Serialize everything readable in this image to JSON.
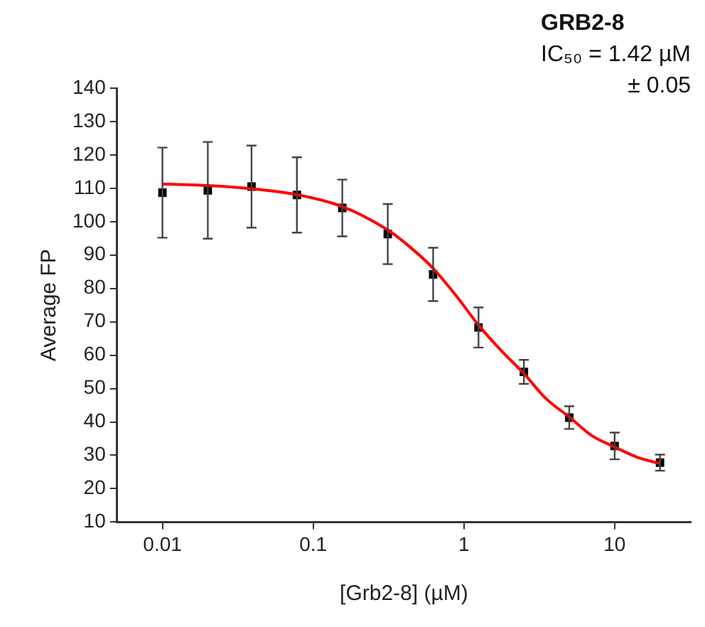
{
  "chart_data": {
    "type": "scatter",
    "title": "GRB2-8",
    "annotations": [
      "IC₅₀ = 1.42 µM",
      "± 0.05"
    ],
    "xlabel": "[Grb2-8] (µM)",
    "ylabel": "Average FP",
    "log": "x",
    "grid": false,
    "legend": false,
    "xlim": [
      0.005,
      32
    ],
    "xticks": [
      0.01,
      0.1,
      1,
      10
    ],
    "ylim": [
      10,
      140
    ],
    "yticks": [
      10,
      20,
      30,
      40,
      50,
      60,
      70,
      80,
      90,
      100,
      110,
      120,
      130,
      140
    ],
    "series": [
      {
        "type": "line",
        "color": "#ff0000",
        "marker": "none",
        "x": [
          0.01,
          0.02,
          0.04,
          0.08,
          0.156,
          0.3125,
          0.45,
          0.625,
          0.9,
          1.25,
          1.8,
          2.5,
          3.5,
          5,
          7,
          10,
          14,
          20
        ],
        "values": [
          111.3,
          110.8,
          109.8,
          108,
          104.5,
          97.5,
          92,
          86,
          77.5,
          69,
          61,
          54.5,
          47,
          41.5,
          36,
          32.5,
          29.5,
          27.5
        ]
      },
      {
        "type": "scatter",
        "color": "#000000",
        "marker": "square",
        "x": [
          0.01,
          0.02,
          0.039,
          0.078,
          0.156,
          0.3125,
          0.625,
          1.25,
          2.5,
          5,
          10,
          20
        ],
        "values": [
          108.7,
          109.4,
          110.5,
          108,
          104.1,
          96.3,
          84.2,
          68.3,
          55,
          41.3,
          32.8,
          27.8
        ],
        "errors": [
          13.5,
          14.5,
          12.3,
          11.3,
          8.5,
          9,
          8,
          6,
          3.6,
          3.4,
          4,
          2.4
        ]
      }
    ]
  }
}
